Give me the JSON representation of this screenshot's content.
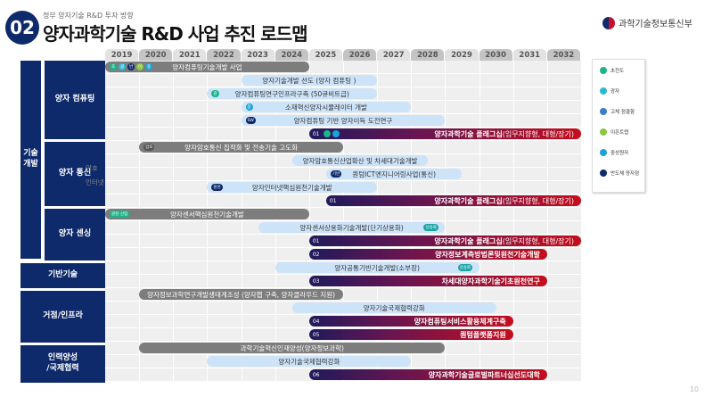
{
  "header": {
    "number": "02",
    "subtitle": "정부 양자기술 R&D 투자 방향",
    "title": "양자과학기술 R&D 사업 추진 로드맵",
    "ministry": "과학기술정보통신부"
  },
  "years": [
    "2019",
    "2020",
    "2021",
    "2022",
    "2023",
    "2024",
    "2025",
    "2026",
    "2027",
    "2028",
    "2029",
    "2030",
    "2031",
    "2032"
  ],
  "categories": [
    {
      "label": "기술\n개발",
      "group": true
    },
    {
      "label": "양자 컴퓨팅"
    },
    {
      "label": "양자 통신"
    },
    {
      "label": "양자 센싱"
    },
    {
      "label": "기반기술"
    },
    {
      "label": "거점/인프라"
    },
    {
      "label": "인력양성\n/국제협력"
    }
  ],
  "side_labels": [
    "암호",
    "인터넷"
  ],
  "rows": [
    {
      "type": "gray",
      "start": 2019,
      "end": 2025,
      "text": "양자컴퓨팅기술개발 사업",
      "badges": [
        {
          "t": "초",
          "c": "#1bb58a"
        },
        {
          "t": "광",
          "c": "#2bb8d8"
        },
        {
          "t": "반",
          "c": "#0e2a6b"
        },
        {
          "t": "이",
          "c": "#8cc63f"
        },
        {
          "t": "중",
          "c": "#1aa3d9"
        }
      ]
    },
    {
      "type": "light",
      "start": 2023,
      "end": 2027,
      "text": "양자기술개발 선도 (양자 컴퓨팅 )"
    },
    {
      "type": "light",
      "start": 2022,
      "end": 2027,
      "text": "양자컴퓨팅연구인프라구축 (50큐비트급)",
      "badges": [
        {
          "t": "광",
          "c": "#1bb58a"
        }
      ]
    },
    {
      "type": "light",
      "start": 2023,
      "end": 2028,
      "text": "소재혁신양자시뮬레이터 개발",
      "badges": [
        {
          "t": "중",
          "c": "#1aa3d9"
        }
      ]
    },
    {
      "type": "light",
      "start": 2023,
      "end": 2029,
      "text": "양자컴퓨팅 기반 양자이득 도전연구",
      "badges": [
        {
          "t": "SW",
          "c": "#0e2a6b"
        }
      ]
    },
    {
      "type": "flag",
      "start": 2025,
      "end": 2033,
      "num": "01",
      "text": "양자과학기술 플래그십",
      "sub": " (임무지향형, 대형/장기)",
      "badges": [
        {
          "t": "",
          "c": "#1bb58a"
        },
        {
          "t": "",
          "c": "#1aa3d9"
        }
      ]
    },
    {
      "type": "gray",
      "start": 2020,
      "end": 2026,
      "text": "양자암호통신 집적화 및 전송기술 고도화",
      "badges": [
        {
          "t": "암호",
          "c": "#555"
        }
      ]
    },
    {
      "type": "light",
      "start": 2024.5,
      "end": 2028.5,
      "text": "양자암호통신산업확산 및 차세대기술개발"
    },
    {
      "type": "light",
      "start": 2025.5,
      "end": 2029.5,
      "text": "퀀텀ICT엔지니어링사업(통신)",
      "badges": [
        {
          "t": "기반",
          "c": "#0e2a6b"
        }
      ]
    },
    {
      "type": "light",
      "start": 2022,
      "end": 2027,
      "text": "양자인터넷핵심원천기술개발",
      "badges": [
        {
          "t": "원천",
          "c": "#0e2a6b"
        }
      ]
    },
    {
      "type": "flag",
      "start": 2025.5,
      "end": 2033,
      "num": "01",
      "text": "양자과학기술 플래그십",
      "sub": " (임무지향형, 대형/장기)"
    },
    {
      "type": "gray",
      "start": 2019,
      "end": 2025,
      "text": "양자센서핵심원천기술개발",
      "badges": [
        {
          "t": "원천",
          "c": "#1bb58a"
        },
        {
          "t": "산업",
          "c": "#1bb58a"
        }
      ]
    },
    {
      "type": "light",
      "start": 2023.5,
      "end": 2029,
      "text": "양자센서상용화기술개발(단기상용화)",
      "badges_end": [
        {
          "t": "상용화",
          "c": "#1aa3a3"
        }
      ]
    },
    {
      "type": "flag",
      "start": 2025,
      "end": 2033,
      "num": "01",
      "text": "양자과학기술 플래그십",
      "sub": " (임무지향형, 대형/장기)"
    },
    {
      "type": "flag",
      "start": 2025,
      "end": 2032,
      "num": "02",
      "text": "양자정보계측방법론및원천기술개발"
    },
    {
      "type": "light",
      "start": 2024,
      "end": 2030,
      "text": "양자공통기반기술개발(소부장)",
      "badges_end": [
        {
          "t": "상용화",
          "c": "#1aa3a3"
        }
      ]
    },
    {
      "type": "flag",
      "start": 2025,
      "end": 2032,
      "num": "03",
      "text": "차세대양자과학기술기초원천연구"
    },
    {
      "type": "gray",
      "start": 2020,
      "end": 2026,
      "text": "양자정보과학연구개발생태계조성 (양자팹 구축, 양자클라우드 지원)"
    },
    {
      "type": "light",
      "start": 2024.5,
      "end": 2030.5,
      "text": "양자기술국제협력강화"
    },
    {
      "type": "flag",
      "start": 2025,
      "end": 2031,
      "num": "04",
      "text": "양자컴퓨팅서비스활용체계구축"
    },
    {
      "type": "flag",
      "start": 2025,
      "end": 2031,
      "num": "05",
      "text": "퀀텀플랫폼지원"
    },
    {
      "type": "gray",
      "start": 2020,
      "end": 2029,
      "text": "과학기술혁신인재양성(양자정보과학)"
    },
    {
      "type": "light",
      "start": 2022,
      "end": 2028,
      "text": "양자기술국제협력강화"
    },
    {
      "type": "flag",
      "start": 2025,
      "end": 2032,
      "num": "06",
      "text": "양자과학기술글로벌파트너십선도대학"
    }
  ],
  "legend": [
    {
      "label": "초전도",
      "color": "#1bb58a",
      "mark": "초"
    },
    {
      "label": "광자",
      "color": "#2bb8d8",
      "mark": "광"
    },
    {
      "label": "고체 점결함",
      "color": "#3a7bd5",
      "mark": "고"
    },
    {
      "label": "이온트랩",
      "color": "#8cc63f",
      "mark": "이"
    },
    {
      "label": "중성원자",
      "color": "#1aa3d9",
      "mark": "중"
    },
    {
      "label": "반도체 양자점",
      "color": "#0e2a6b",
      "mark": "반"
    }
  ],
  "page_number": "10"
}
